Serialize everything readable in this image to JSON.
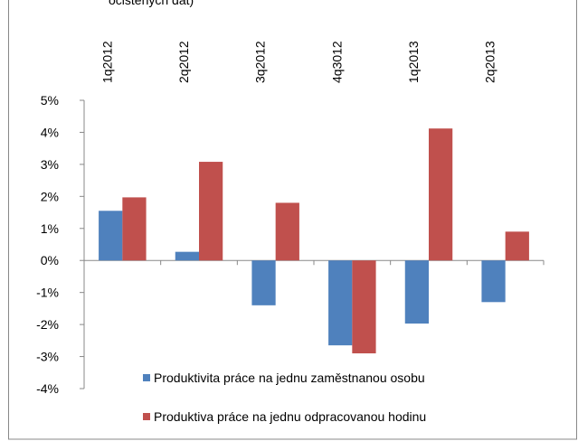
{
  "chart_data": {
    "type": "bar",
    "title": "očištěných dat)",
    "categories": [
      "1q2012",
      "2q2012",
      "3q2012",
      "4q3012",
      "1q2013",
      "2q2013"
    ],
    "series": [
      {
        "name": "Produktivita práce na jednu zaměstnanou osobu",
        "color": "#4f81bd",
        "values": [
          1.55,
          0.27,
          -1.4,
          -2.65,
          -1.97,
          -1.3
        ]
      },
      {
        "name": "Produktiva práce na jednu odpracovanou hodinu",
        "color": "#c0504d",
        "values": [
          1.97,
          3.08,
          1.8,
          -2.9,
          4.12,
          0.9
        ]
      }
    ],
    "ylim": [
      -4,
      5
    ],
    "yticks": [
      {
        "value": -4,
        "label": "-4%"
      },
      {
        "value": -3,
        "label": "-3%"
      },
      {
        "value": -2,
        "label": "-2%"
      },
      {
        "value": -1,
        "label": "-1%"
      },
      {
        "value": 0,
        "label": "0%"
      },
      {
        "value": 1,
        "label": "1%"
      },
      {
        "value": 2,
        "label": "2%"
      },
      {
        "value": 3,
        "label": "3%"
      },
      {
        "value": 4,
        "label": "4%"
      },
      {
        "value": 5,
        "label": "5%"
      }
    ],
    "legend": "bottom-right"
  }
}
